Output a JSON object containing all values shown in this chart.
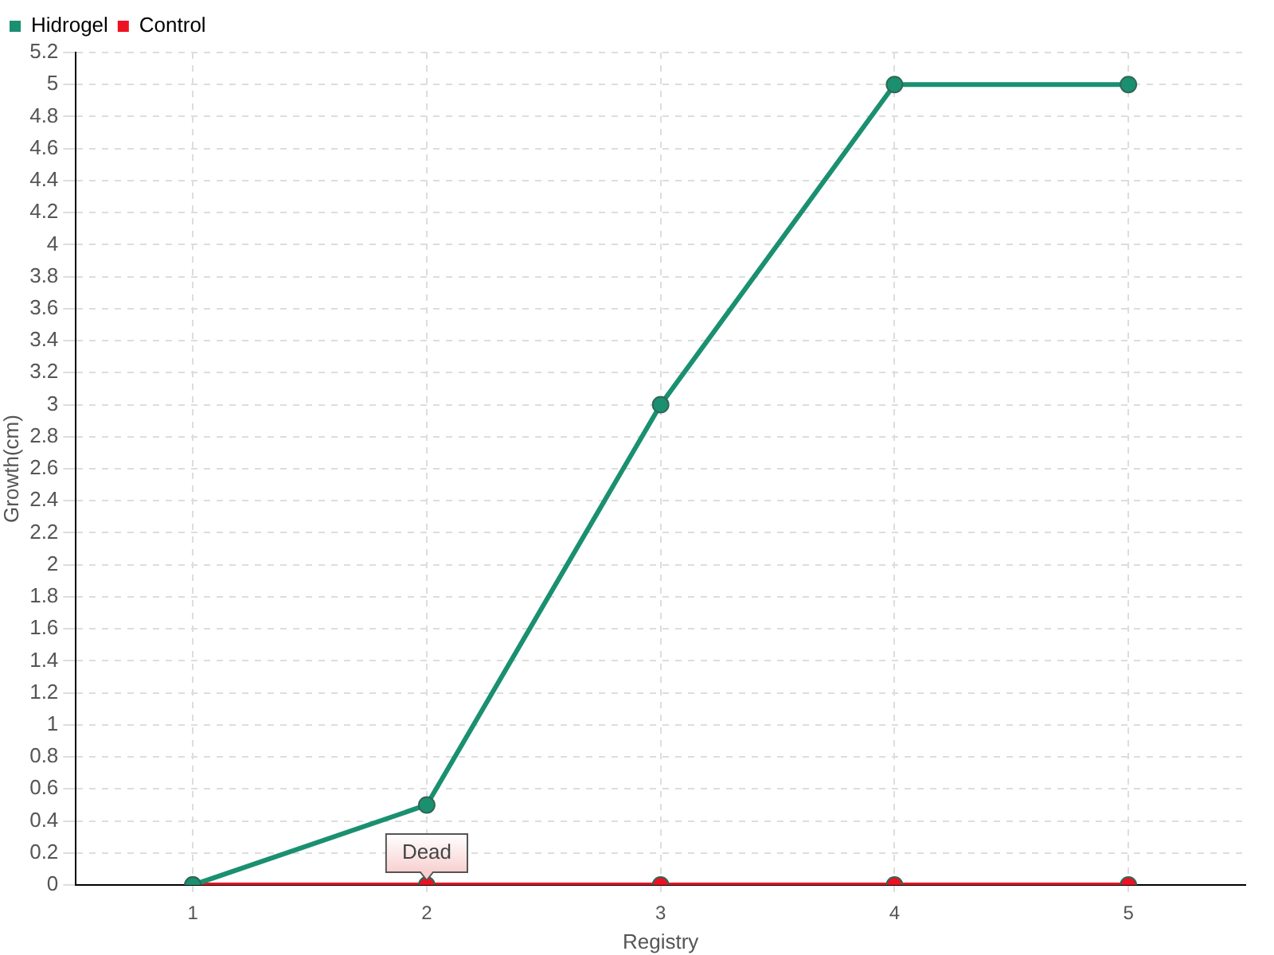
{
  "chart_data": {
    "type": "line",
    "xlabel": "Registry",
    "ylabel": "Growth(cm)",
    "x": [
      1,
      2,
      3,
      4,
      5
    ],
    "series": [
      {
        "name": "Hidrogel",
        "color": "#1a9070",
        "values": [
          0,
          0.5,
          3,
          5,
          5
        ]
      },
      {
        "name": "Control",
        "color": "#ee1122",
        "values": [
          0,
          0,
          0,
          0,
          0
        ]
      }
    ],
    "xlim": [
      0.5,
      5.5
    ],
    "xticks": [
      1,
      2,
      3,
      4,
      5
    ],
    "ylim": [
      0,
      5.2
    ],
    "yticks": [
      0,
      0.2,
      0.4,
      0.6,
      0.8,
      1,
      1.2,
      1.4,
      1.6,
      1.8,
      2,
      2.2,
      2.4,
      2.6,
      2.8,
      3,
      3.2,
      3.4,
      3.6,
      3.8,
      4,
      4.2,
      4.4,
      4.6,
      4.8,
      5,
      5.2
    ],
    "annotations": [
      {
        "text": "Dead",
        "x": 2,
        "y": 0
      }
    ],
    "grid": true,
    "legend": "top left",
    "marker": "circle",
    "line_style": "solid"
  }
}
